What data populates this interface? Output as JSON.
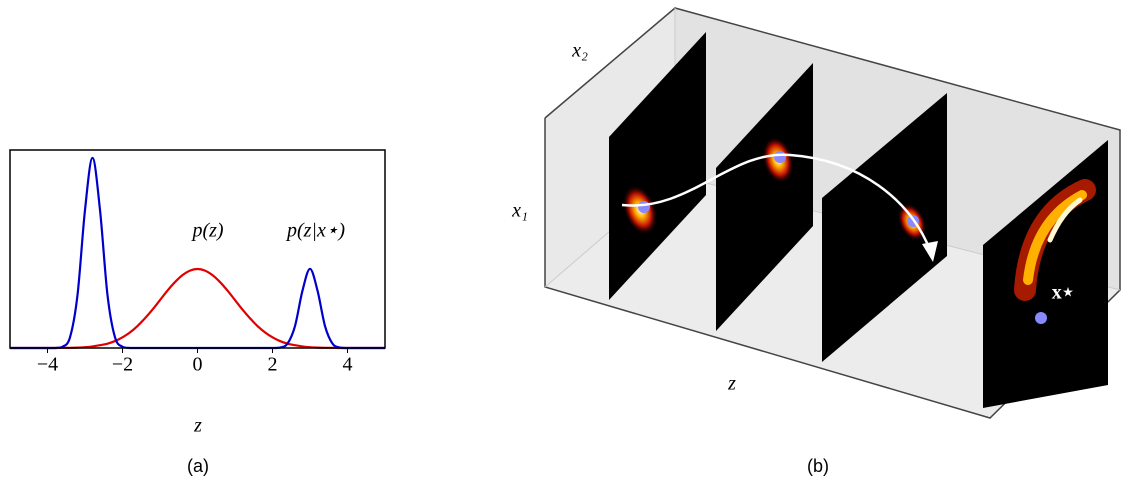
{
  "chart_data": {
    "type": "line",
    "xlabel": "z",
    "caption": "(a)",
    "x": [
      -5,
      -4.8,
      -4.6,
      -4.4,
      -4.2,
      -4,
      -3.8,
      -3.6,
      -3.4,
      -3.2,
      -3,
      -2.8,
      -2.6,
      -2.4,
      -2.2,
      -2,
      -1.8,
      -1.6,
      -1.4,
      -1.2,
      -1,
      -0.8,
      -0.6,
      -0.4,
      -0.2,
      0,
      0.2,
      0.4,
      0.6,
      0.8,
      1,
      1.2,
      1.4,
      1.6,
      1.8,
      2,
      2.2,
      2.4,
      2.6,
      2.8,
      3,
      3.2,
      3.4,
      3.6,
      3.8,
      4,
      4.2,
      4.4,
      4.6,
      4.8,
      5
    ],
    "series": [
      {
        "name": "p(z)",
        "color": "#e00000",
        "values": [
          0,
          0,
          0,
          0,
          0,
          0,
          0,
          0.001,
          0.001,
          0.002,
          0.004,
          0.008,
          0.014,
          0.022,
          0.035,
          0.054,
          0.079,
          0.111,
          0.15,
          0.194,
          0.242,
          0.29,
          0.333,
          0.368,
          0.391,
          0.399,
          0.391,
          0.368,
          0.333,
          0.29,
          0.242,
          0.194,
          0.15,
          0.111,
          0.079,
          0.054,
          0.035,
          0.022,
          0.014,
          0.008,
          0.004,
          0.002,
          0.001,
          0.001,
          0,
          0,
          0,
          0,
          0,
          0,
          0
        ]
      },
      {
        "name": "p(z|x⋆)",
        "color": "#0000cc",
        "values": [
          0,
          0,
          0,
          0,
          0,
          0,
          0,
          0.006,
          0.054,
          0.267,
          0.697,
          0.96,
          0.697,
          0.267,
          0.054,
          0.006,
          0,
          0,
          0,
          0,
          0,
          0,
          0,
          0,
          0,
          0,
          0,
          0,
          0,
          0,
          0,
          0,
          0,
          0,
          0,
          0,
          0.002,
          0.022,
          0.111,
          0.29,
          0.4,
          0.29,
          0.111,
          0.022,
          0.002,
          0,
          0,
          0,
          0,
          0,
          0
        ]
      }
    ],
    "xlim": [
      -5,
      5
    ],
    "ylim": [
      0,
      1
    ],
    "xticks": [
      {
        "value": -4,
        "label": "−4"
      },
      {
        "value": -2,
        "label": "−2"
      },
      0,
      2,
      4
    ]
  },
  "panel_b": {
    "x2_label": "x₂",
    "x1_label": "x₁",
    "z_label": "z",
    "point_label": "x⋆",
    "caption": "(b)"
  }
}
